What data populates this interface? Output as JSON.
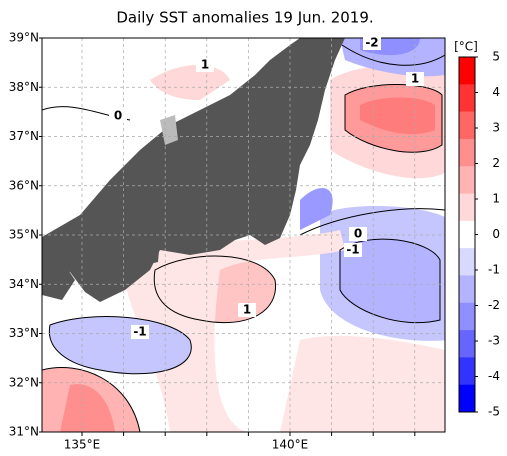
{
  "title": "Daily SST anomalies 19 Jun. 2019.",
  "lat_labels": [
    "39°N",
    "38°N",
    "37°N",
    "36°N",
    "35°N",
    "34°N",
    "33°N",
    "32°N",
    "31°N"
  ],
  "lon_labels": [
    "135°E",
    "140°E"
  ],
  "colorbar": {
    "unit": "[°C]",
    "lim": [
      -5,
      5
    ],
    "ticks": [
      5,
      4,
      3,
      2,
      1,
      0,
      -1,
      -2,
      -3,
      -4,
      -5
    ],
    "colors": [
      "#ff0000",
      "#ff3333",
      "#ff6666",
      "#ff8f8f",
      "#ffb3b3",
      "#ffd9d9",
      "#ffffff",
      "#d9d9ff",
      "#b3b3ff",
      "#8f8fff",
      "#6666ff",
      "#3333ff",
      "#0000ff"
    ]
  },
  "contour_labels": [
    "1",
    "-2",
    "1",
    "0",
    "0",
    "-1",
    "1",
    "-1"
  ]
}
